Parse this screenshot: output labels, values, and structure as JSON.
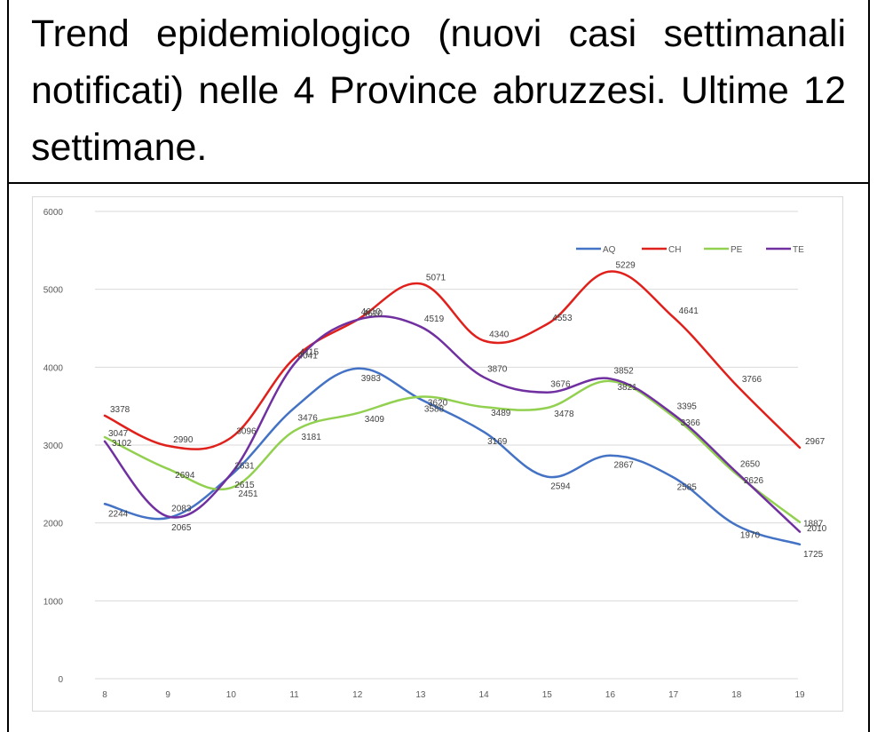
{
  "title": "Trend epidemiologico (nuovi casi settimanali notificati) nelle 4 Province abruzzesi. Ultime 12 settimane.",
  "chart_data": {
    "type": "line",
    "smooth": true,
    "x": [
      8,
      9,
      10,
      11,
      12,
      13,
      14,
      15,
      16,
      17,
      18,
      19
    ],
    "ylim": [
      0,
      6000
    ],
    "yticks": [
      0,
      1000,
      2000,
      3000,
      4000,
      5000,
      6000
    ],
    "grid": true,
    "legend_position": "top-right",
    "series": [
      {
        "name": "AQ",
        "color": "#4472c4",
        "values": [
          2244,
          2065,
          2615,
          3476,
          3983,
          3588,
          3169,
          2594,
          2867,
          2585,
          1970,
          1725
        ]
      },
      {
        "name": "CH",
        "color": "#e0201b",
        "values": [
          3378,
          2990,
          3096,
          4115,
          4610,
          5071,
          4340,
          4553,
          5229,
          4641,
          3766,
          2967
        ]
      },
      {
        "name": "PE",
        "color": "#92d050",
        "values": [
          3102,
          2694,
          2451,
          3181,
          3409,
          3620,
          3489,
          3478,
          3821,
          3366,
          2626,
          2010
        ]
      },
      {
        "name": "TE",
        "color": "#7030a0",
        "values": [
          3047,
          2083,
          2631,
          4041,
          4610,
          4519,
          3870,
          3676,
          3852,
          3395,
          2650,
          1887
        ]
      }
    ]
  }
}
